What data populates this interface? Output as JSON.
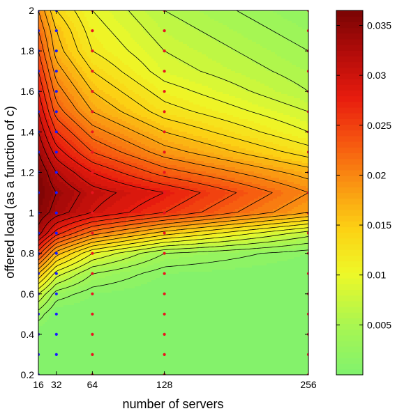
{
  "chart_data": {
    "type": "heatmap",
    "subtype": "filled-contour",
    "title": "",
    "xlabel": "number of servers",
    "ylabel": "offered load (as a function of c)",
    "x_ticks": [
      16,
      32,
      64,
      128,
      256
    ],
    "x_tick_labels": [
      "16",
      "32",
      "64",
      "128",
      "256"
    ],
    "xlim": [
      16,
      256
    ],
    "y_ticks": [
      0.2,
      0.4,
      0.6,
      0.8,
      1,
      1.2,
      1.4,
      1.6,
      1.8,
      2
    ],
    "y_tick_labels": [
      "0.2",
      "0.4",
      "0.6",
      "0.8",
      "1",
      "1.2",
      "1.4",
      "1.6",
      "1.8",
      "2"
    ],
    "ylim": [
      0.2,
      2
    ],
    "colorbar": {
      "range": [
        0,
        0.0365
      ],
      "ticks": [
        0.005,
        0.01,
        0.015,
        0.02,
        0.025,
        0.03,
        0.035
      ],
      "tick_labels": [
        "0.005",
        "0.01",
        "0.015",
        "0.02",
        "0.025",
        "0.03",
        "0.035"
      ],
      "colormap": "hot-reversed (green → yellow → orange → red → dark red)"
    },
    "grid": {
      "x": [
        16,
        32,
        64,
        128,
        256
      ],
      "y": [
        0.2,
        0.3,
        0.4,
        0.5,
        0.6,
        0.7,
        0.8,
        0.9,
        1.0,
        1.1,
        1.2,
        1.3,
        1.4,
        1.5,
        1.6,
        1.7,
        1.8,
        1.9,
        2.0
      ],
      "z_by_y": [
        [
          0.0,
          0.0,
          0.0,
          0.0,
          0.0
        ],
        [
          0.0,
          0.0,
          0.0,
          0.0,
          0.0
        ],
        [
          0.0,
          0.0,
          0.0,
          0.0,
          0.0
        ],
        [
          0.003,
          0.0,
          0.0,
          0.0,
          0.0
        ],
        [
          0.008,
          0.003,
          0.001,
          0.0,
          0.0
        ],
        [
          0.016,
          0.009,
          0.004,
          0.001,
          0.0
        ],
        [
          0.025,
          0.017,
          0.01,
          0.004,
          0.001
        ],
        [
          0.033,
          0.027,
          0.021,
          0.015,
          0.007
        ],
        [
          0.0355,
          0.033,
          0.03,
          0.026,
          0.018
        ],
        [
          0.0365,
          0.034,
          0.031,
          0.028,
          0.02
        ],
        [
          0.036,
          0.032,
          0.028,
          0.023,
          0.017
        ],
        [
          0.034,
          0.029,
          0.024,
          0.019,
          0.013
        ],
        [
          0.032,
          0.026,
          0.021,
          0.016,
          0.01
        ],
        [
          0.03,
          0.023,
          0.018,
          0.013,
          0.008
        ],
        [
          0.028,
          0.021,
          0.016,
          0.011,
          0.006
        ],
        [
          0.026,
          0.019,
          0.014,
          0.009,
          0.005
        ],
        [
          0.024,
          0.017,
          0.012,
          0.008,
          0.004
        ],
        [
          0.022,
          0.016,
          0.011,
          0.007,
          0.003
        ],
        [
          0.02,
          0.014,
          0.01,
          0.006,
          0.002
        ]
      ]
    },
    "sample_points": [
      {
        "x": 16,
        "ys": [
          0.2,
          2.0
        ],
        "step": 0.1,
        "color": "#1a1aff"
      },
      {
        "x": 32,
        "ys": [
          0.3,
          2.0
        ],
        "step": 0.1,
        "color": "#1a1aff"
      },
      {
        "x": 64,
        "ys": [
          0.2,
          2.0
        ],
        "step": 0.1,
        "color": "#e8141e"
      },
      {
        "x": 128,
        "ys": [
          0.2,
          2.0
        ],
        "step": 0.1,
        "color": "#e8141e"
      },
      {
        "x": 256,
        "ys": [
          0.2,
          2.0
        ],
        "step": 0.1,
        "color": "#e8141e"
      }
    ]
  }
}
